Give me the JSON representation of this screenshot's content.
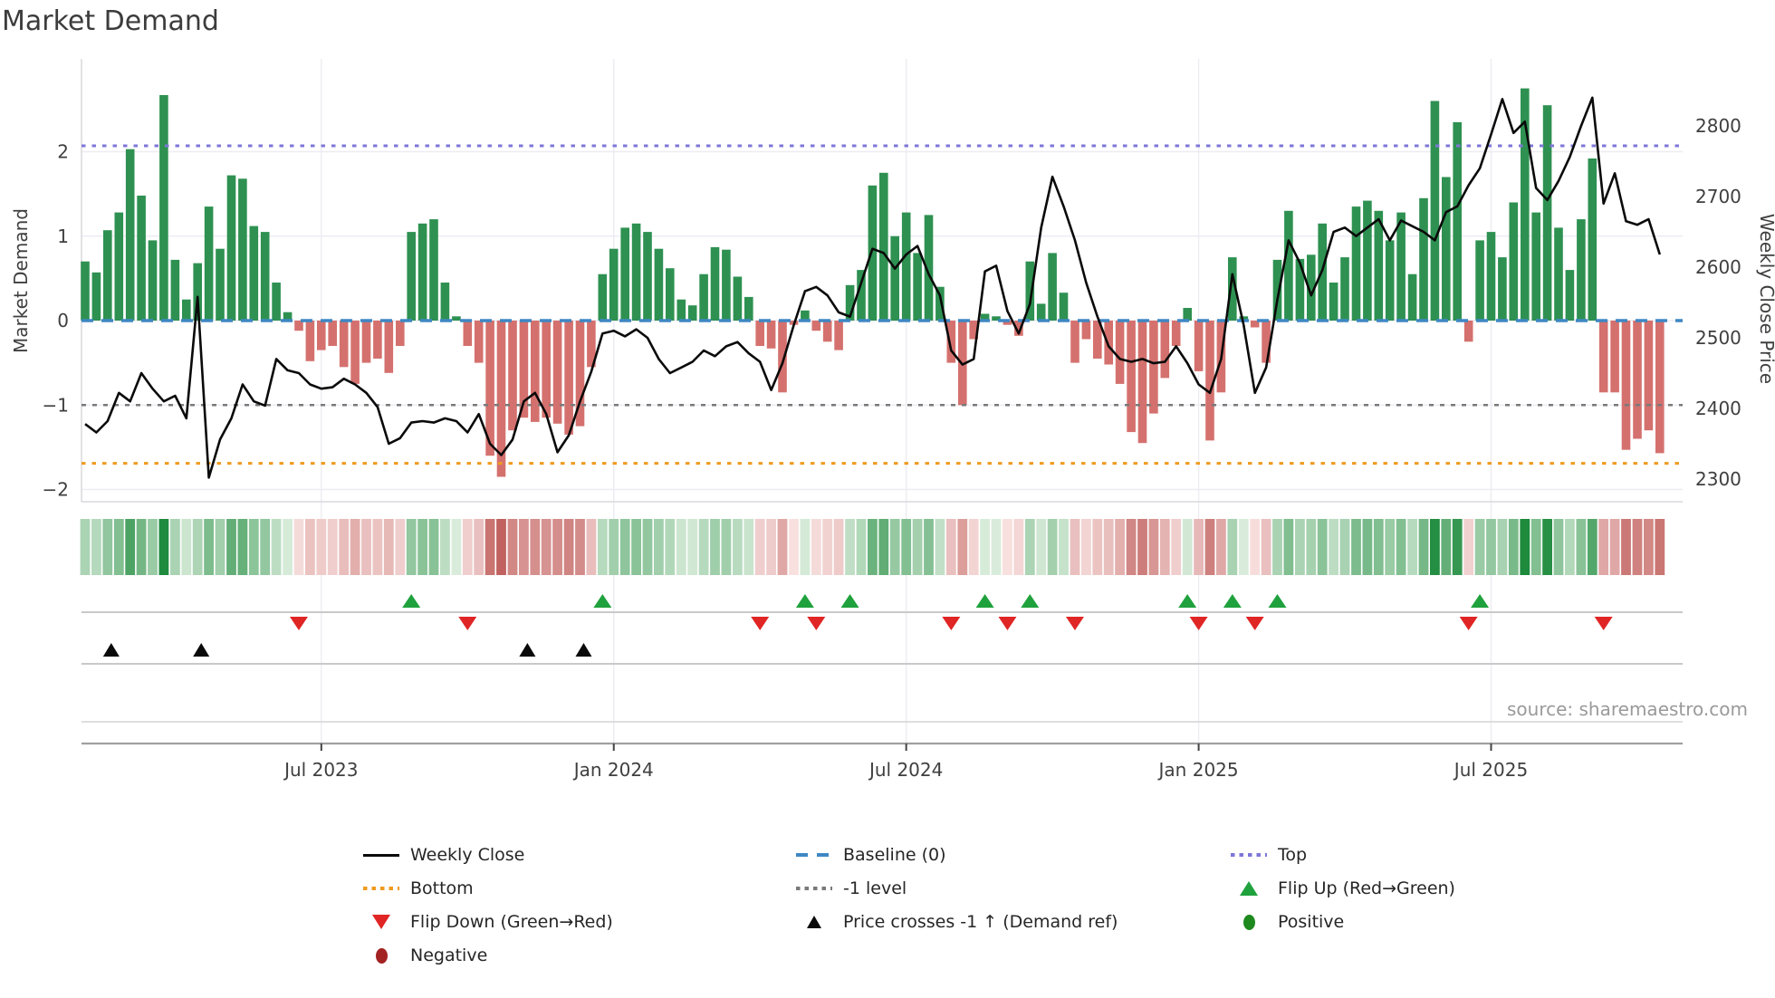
{
  "title": "Market Demand",
  "source_note": "source: sharemaestro.com",
  "axes": {
    "left": {
      "label": "Market Demand",
      "tick_labels": [
        "2",
        "1",
        "0",
        "−1",
        "−2"
      ],
      "tick_values": [
        2,
        1,
        0,
        -1,
        -2
      ],
      "range": [
        -2.14,
        3.1
      ]
    },
    "right": {
      "label": "Weekly Close Price",
      "tick_values": [
        2800,
        2700,
        2600,
        2500,
        2400,
        2300
      ],
      "range": [
        2268,
        2895
      ]
    },
    "x": {
      "tick_labels": [
        "Jul 2023",
        "Jan 2024",
        "Jul 2024",
        "Jan 2025",
        "Jul 2025"
      ],
      "tick_weeks": [
        21,
        47,
        73,
        99,
        125
      ]
    }
  },
  "reference_lines": {
    "top": {
      "label": "Top",
      "value": 2.07,
      "color": "#7d77d8"
    },
    "baseline": {
      "label": "Baseline (0)",
      "value": 0,
      "color": "#3f87c4"
    },
    "minus_one": {
      "label": "-1 level",
      "value": -1,
      "color": "#7a7a7a"
    },
    "bottom": {
      "label": "Bottom",
      "value": -1.69,
      "color": "#f09a20"
    }
  },
  "colors": {
    "bar_positive": "#2e9151",
    "bar_negative": "#d4716e",
    "price_line": "#0a0a0a",
    "flip_up": "#1fa23d",
    "flip_down": "#e02525",
    "price_cross": "#0a0a0a",
    "strip_green_dark": "#1d8a3c",
    "strip_green_light": "#ddeede",
    "strip_red_dark": "#c05f5c",
    "strip_red_light": "#f8e3e2"
  },
  "chart_data": {
    "type": "bar+line",
    "x_unit": "weekly",
    "n_weeks": 141,
    "title": "Market Demand",
    "ylabel_left": "Market Demand",
    "ylabel_right": "Weekly Close Price",
    "demand_bars": [
      0.7,
      0.57,
      1.07,
      1.28,
      2.03,
      1.48,
      0.95,
      2.67,
      0.72,
      0.25,
      0.68,
      1.35,
      0.85,
      1.72,
      1.68,
      1.12,
      1.05,
      0.45,
      0.1,
      -0.12,
      -0.48,
      -0.35,
      -0.3,
      -0.55,
      -0.75,
      -0.5,
      -0.45,
      -0.62,
      -0.3,
      1.05,
      1.15,
      1.2,
      0.45,
      0.05,
      -0.3,
      -0.5,
      -1.6,
      -1.85,
      -1.3,
      -1.15,
      -1.2,
      -1.15,
      -1.22,
      -1.35,
      -1.25,
      -0.55,
      0.55,
      0.85,
      1.1,
      1.15,
      1.05,
      0.85,
      0.62,
      0.25,
      0.18,
      0.55,
      0.87,
      0.84,
      0.52,
      0.28,
      -0.3,
      -0.33,
      -0.85,
      -0.05,
      0.12,
      -0.12,
      -0.25,
      -0.35,
      0.42,
      0.6,
      1.6,
      1.75,
      1.0,
      1.28,
      0.8,
      1.25,
      0.4,
      -0.5,
      -1.0,
      -0.22,
      0.08,
      0.05,
      -0.05,
      -0.18,
      0.7,
      0.2,
      0.8,
      0.33,
      -0.5,
      -0.22,
      -0.45,
      -0.52,
      -0.75,
      -1.32,
      -1.45,
      -1.1,
      -0.68,
      -0.3,
      0.15,
      -0.6,
      -1.42,
      -0.85,
      0.75,
      0.05,
      -0.08,
      -0.5,
      0.72,
      1.3,
      0.73,
      0.78,
      1.15,
      0.45,
      0.75,
      1.35,
      1.42,
      1.3,
      0.95,
      1.28,
      0.55,
      1.45,
      2.6,
      1.7,
      2.35,
      -0.25,
      0.95,
      1.05,
      0.75,
      1.4,
      2.75,
      1.28,
      2.55,
      1.1,
      0.6,
      1.2,
      1.92,
      -0.85,
      -0.85,
      -1.53,
      -1.4,
      -1.3,
      -1.57
    ],
    "weekly_close_price": [
      2378,
      2366,
      2382,
      2422,
      2410,
      2450,
      2428,
      2410,
      2418,
      2386,
      2558,
      2302,
      2356,
      2386,
      2434,
      2410,
      2404,
      2470,
      2454,
      2450,
      2434,
      2428,
      2430,
      2442,
      2434,
      2422,
      2402,
      2350,
      2358,
      2380,
      2382,
      2380,
      2386,
      2382,
      2366,
      2392,
      2350,
      2334,
      2356,
      2410,
      2422,
      2392,
      2338,
      2362,
      2410,
      2452,
      2506,
      2510,
      2502,
      2512,
      2500,
      2470,
      2450,
      2458,
      2466,
      2482,
      2474,
      2488,
      2494,
      2478,
      2466,
      2426,
      2464,
      2518,
      2566,
      2572,
      2560,
      2536,
      2530,
      2578,
      2626,
      2620,
      2598,
      2618,
      2630,
      2590,
      2560,
      2482,
      2462,
      2470,
      2594,
      2602,
      2538,
      2506,
      2548,
      2656,
      2728,
      2686,
      2638,
      2578,
      2530,
      2488,
      2470,
      2466,
      2470,
      2464,
      2466,
      2488,
      2464,
      2434,
      2422,
      2470,
      2590,
      2518,
      2422,
      2458,
      2554,
      2638,
      2606,
      2560,
      2596,
      2650,
      2656,
      2644,
      2656,
      2668,
      2638,
      2666,
      2658,
      2650,
      2638,
      2678,
      2686,
      2716,
      2740,
      2788,
      2838,
      2790,
      2806,
      2712,
      2695,
      2722,
      2756,
      2800,
      2840,
      2690,
      2733,
      2665,
      2660,
      2668,
      2618
    ],
    "flip_up_weeks": [
      29,
      46,
      64,
      68,
      80,
      84,
      98,
      102,
      106,
      124
    ],
    "flip_down_weeks": [
      19,
      34,
      60,
      65,
      77,
      82,
      88,
      99,
      104,
      123,
      135
    ],
    "price_cross_minus1_weeks": [
      2,
      10,
      39,
      44
    ],
    "heatmap_strip": "cells mirror sign and intensity of demand_bars",
    "grid": "light horizontal lines at demand integers, light vertical lines at date ticks",
    "legend_position": "bottom"
  },
  "legend": {
    "items": [
      {
        "label": "Weekly Close",
        "type": "line-black",
        "col": 0,
        "row": 0
      },
      {
        "label": "Baseline (0)",
        "type": "dash-blue",
        "col": 1,
        "row": 0
      },
      {
        "label": "Top",
        "type": "dot-purple",
        "col": 2,
        "row": 0
      },
      {
        "label": "Bottom",
        "type": "dot-orange",
        "col": 0,
        "row": 1
      },
      {
        "label": "-1 level",
        "type": "dot-gray",
        "col": 1,
        "row": 1
      },
      {
        "label": "Flip Up (Red→Green)",
        "type": "tri-up-green",
        "col": 2,
        "row": 1
      },
      {
        "label": "Flip Down (Green→Red)",
        "type": "tri-down-red",
        "col": 0,
        "row": 2
      },
      {
        "label": "Price crosses -1 ↑ (Demand ref)",
        "type": "tri-up-black",
        "col": 1,
        "row": 2
      },
      {
        "label": "Positive",
        "type": "circle-green",
        "col": 2,
        "row": 2
      },
      {
        "label": "Negative",
        "type": "circle-darkred",
        "col": 0,
        "row": 3
      }
    ]
  }
}
